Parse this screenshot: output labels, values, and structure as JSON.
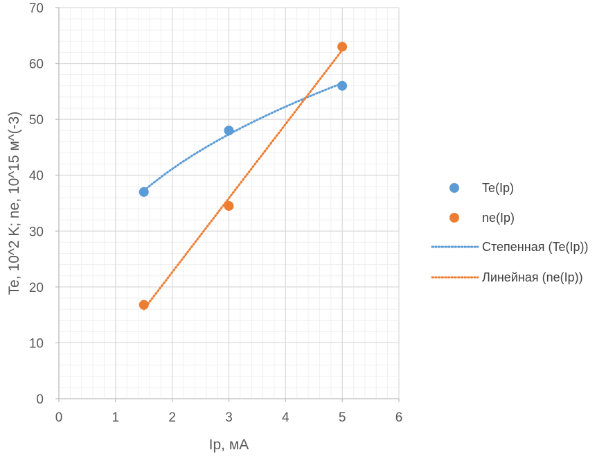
{
  "chart_data": {
    "type": "scatter",
    "xlabel": "Ip, мА",
    "ylabel": "Te, 10^2 K; ne, 10^15 м^(-3)",
    "xlim": [
      0,
      6
    ],
    "ylim": [
      0,
      70
    ],
    "x_ticks": [
      0,
      1,
      2,
      3,
      4,
      5,
      6
    ],
    "y_ticks": [
      0,
      10,
      20,
      30,
      40,
      50,
      60,
      70
    ],
    "grid": true,
    "minor_grid": true,
    "legend_position": "right",
    "series": [
      {
        "name": "Te(Ip)",
        "color": "#5B9BD5",
        "x": [
          1.5,
          3,
          5
        ],
        "y": [
          37,
          48,
          56
        ]
      },
      {
        "name": "ne(Ip)",
        "color": "#ED7D31",
        "x": [
          1.5,
          3,
          5
        ],
        "y": [
          16.8,
          34.5,
          63
        ]
      }
    ],
    "trendlines": [
      {
        "name": "Степенная (Te(Ip))",
        "kind": "power",
        "color": "#5B9BD5",
        "series": "Te(Ip)"
      },
      {
        "name": "Линейная (ne(Ip))",
        "kind": "linear",
        "color": "#ED7D31",
        "series": "ne(Ip)"
      }
    ]
  }
}
